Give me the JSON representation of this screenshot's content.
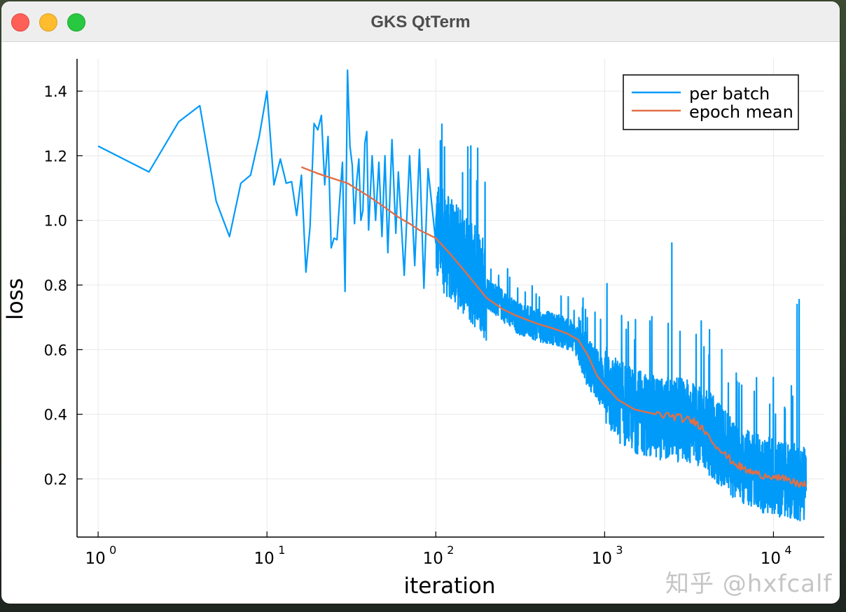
{
  "window": {
    "title": "GKS QtTerm"
  },
  "watermark": "知乎 @hxfcalf",
  "colors": {
    "per_batch": "#009af9",
    "epoch_mean": "#e26f46",
    "grid": "#e8e8e8",
    "axis": "#000000"
  },
  "chart_data": {
    "type": "line",
    "title": "",
    "xlabel": "iteration",
    "ylabel": "loss",
    "xscale": "log10",
    "xlim": [
      0.75,
      20000
    ],
    "ylim": [
      0.02,
      1.5
    ],
    "x_ticks": [
      1,
      10,
      100,
      1000,
      10000
    ],
    "x_tick_labels": [
      {
        "base": "10",
        "exp": "0"
      },
      {
        "base": "10",
        "exp": "1"
      },
      {
        "base": "10",
        "exp": "2"
      },
      {
        "base": "10",
        "exp": "3"
      },
      {
        "base": "10",
        "exp": "4"
      }
    ],
    "y_ticks": [
      0.2,
      0.4,
      0.6,
      0.8,
      1.0,
      1.2,
      1.4
    ],
    "y_tick_labels": [
      "0.2",
      "0.4",
      "0.6",
      "0.8",
      "1.0",
      "1.2",
      "1.4"
    ],
    "grid": true,
    "legend": {
      "position": "top-right",
      "entries": [
        "per batch",
        "epoch mean"
      ]
    },
    "series": [
      {
        "name": "per batch",
        "note": "noisy per-iteration loss, 1..~15600 iterations; explicit early points listed, later points approximated by trend + noise band",
        "points": [
          [
            1,
            1.23
          ],
          [
            2,
            1.15
          ],
          [
            3,
            1.305
          ],
          [
            4,
            1.355
          ],
          [
            5,
            1.06
          ],
          [
            6,
            0.95
          ],
          [
            7,
            1.115
          ],
          [
            8,
            1.14
          ],
          [
            9,
            1.26
          ],
          [
            10,
            1.4
          ],
          [
            11,
            1.11
          ],
          [
            12,
            1.19
          ],
          [
            13,
            1.115
          ],
          [
            14,
            1.12
          ],
          [
            15,
            1.015
          ],
          [
            16,
            1.14
          ],
          [
            17,
            0.84
          ],
          [
            18,
            0.98
          ],
          [
            19,
            1.3
          ],
          [
            20,
            1.28
          ],
          [
            21,
            1.325
          ],
          [
            22,
            1.11
          ],
          [
            23,
            1.26
          ],
          [
            24,
            0.915
          ],
          [
            25,
            0.945
          ],
          [
            26,
            0.94
          ],
          [
            27,
            1.07
          ],
          [
            28,
            1.18
          ],
          [
            29,
            0.78
          ],
          [
            30,
            1.465
          ],
          [
            31,
            1.23
          ],
          [
            32,
            1.17
          ],
          [
            33,
            0.99
          ],
          [
            34,
            1.12
          ],
          [
            35,
            1.19
          ],
          [
            36,
            1.0
          ],
          [
            37,
            1.03
          ],
          [
            38,
            1.24
          ],
          [
            39,
            1.275
          ],
          [
            40,
            0.97
          ],
          [
            42,
            1.2
          ],
          [
            44,
            1.0
          ],
          [
            46,
            1.18
          ],
          [
            48,
            0.95
          ],
          [
            50,
            1.2
          ],
          [
            52,
            0.9
          ],
          [
            55,
            1.25
          ],
          [
            58,
            0.96
          ],
          [
            60,
            1.15
          ],
          [
            65,
            0.83
          ],
          [
            70,
            1.2
          ],
          [
            75,
            0.86
          ],
          [
            80,
            1.22
          ],
          [
            85,
            0.79
          ],
          [
            90,
            1.16
          ],
          [
            100,
            0.93
          ]
        ],
        "trend": [
          [
            100,
            0.96
          ],
          [
            150,
            0.86
          ],
          [
            200,
            0.78
          ],
          [
            300,
            0.7
          ],
          [
            400,
            0.675
          ],
          [
            500,
            0.665
          ],
          [
            600,
            0.65
          ],
          [
            700,
            0.625
          ],
          [
            800,
            0.56
          ],
          [
            1000,
            0.49
          ],
          [
            1200,
            0.44
          ],
          [
            1500,
            0.41
          ],
          [
            2000,
            0.39
          ],
          [
            3000,
            0.38
          ],
          [
            4000,
            0.35
          ],
          [
            5000,
            0.3
          ],
          [
            6000,
            0.25
          ],
          [
            8000,
            0.22
          ],
          [
            10000,
            0.205
          ],
          [
            12000,
            0.195
          ],
          [
            14000,
            0.19
          ],
          [
            15600,
            0.185
          ]
        ],
        "spikes": [
          [
            2500,
            0.93
          ],
          [
            14200,
            0.755
          ],
          [
            13800,
            0.74
          ]
        ]
      },
      {
        "name": "epoch mean",
        "points": [
          [
            16,
            1.165
          ],
          [
            20,
            1.145
          ],
          [
            30,
            1.115
          ],
          [
            40,
            1.075
          ],
          [
            50,
            1.04
          ],
          [
            60,
            1.01
          ],
          [
            70,
            0.99
          ],
          [
            80,
            0.97
          ],
          [
            100,
            0.945
          ],
          [
            120,
            0.9
          ],
          [
            150,
            0.84
          ],
          [
            200,
            0.76
          ],
          [
            250,
            0.725
          ],
          [
            300,
            0.705
          ],
          [
            400,
            0.68
          ],
          [
            500,
            0.665
          ],
          [
            600,
            0.65
          ],
          [
            700,
            0.63
          ],
          [
            800,
            0.58
          ],
          [
            900,
            0.52
          ],
          [
            1000,
            0.49
          ],
          [
            1200,
            0.445
          ],
          [
            1500,
            0.415
          ],
          [
            2000,
            0.4
          ],
          [
            2500,
            0.395
          ],
          [
            3000,
            0.385
          ],
          [
            3500,
            0.375
          ],
          [
            4000,
            0.345
          ],
          [
            5000,
            0.28
          ],
          [
            6000,
            0.245
          ],
          [
            7000,
            0.225
          ],
          [
            8000,
            0.215
          ],
          [
            10000,
            0.21
          ],
          [
            12000,
            0.195
          ],
          [
            14000,
            0.185
          ],
          [
            15600,
            0.18
          ]
        ]
      }
    ]
  }
}
